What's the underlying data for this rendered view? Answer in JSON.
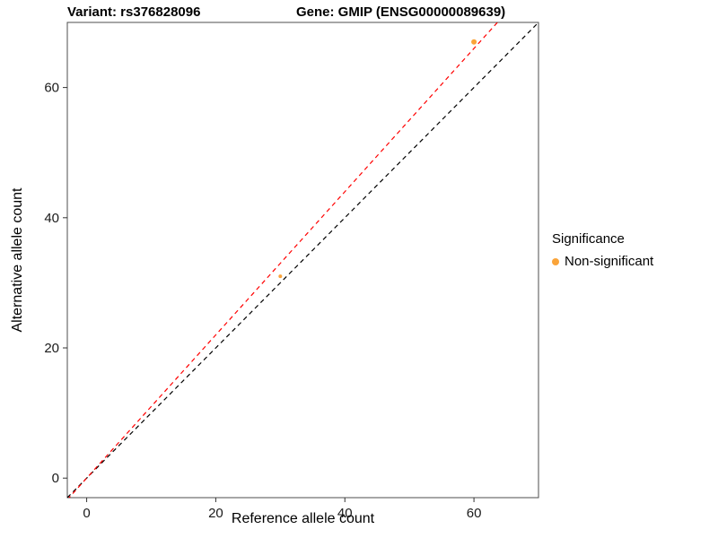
{
  "chart_data": {
    "type": "scatter",
    "title_left": "Variant: rs376828096",
    "title_right": "Gene: GMIP (ENSG00000089639)",
    "xlabel": "Reference allele count",
    "ylabel": "Alternative allele count",
    "xlim": [
      -3,
      70
    ],
    "ylim": [
      -3,
      70
    ],
    "xticks": [
      0,
      20,
      40,
      60
    ],
    "yticks": [
      0,
      20,
      40,
      60
    ],
    "grid": false,
    "points": [
      {
        "x": 30,
        "y": 31,
        "series": "Non-significant",
        "r": 2
      },
      {
        "x": 60,
        "y": 67,
        "series": "Non-significant",
        "r": 3
      }
    ],
    "lines": [
      {
        "name": "identity-line",
        "slope": 1,
        "intercept": 0,
        "color": "#000000",
        "dashed": true
      },
      {
        "name": "fit-line",
        "slope": 1.1,
        "intercept": 0,
        "color": "#FF0000",
        "dashed": true
      }
    ],
    "point_color": "#FAA43A",
    "panel_border_color": "#4D4D4D",
    "legend": {
      "position": "right",
      "title": "Significance",
      "entries": [
        {
          "label": "Non-significant",
          "color": "#FAA43A"
        }
      ]
    }
  }
}
